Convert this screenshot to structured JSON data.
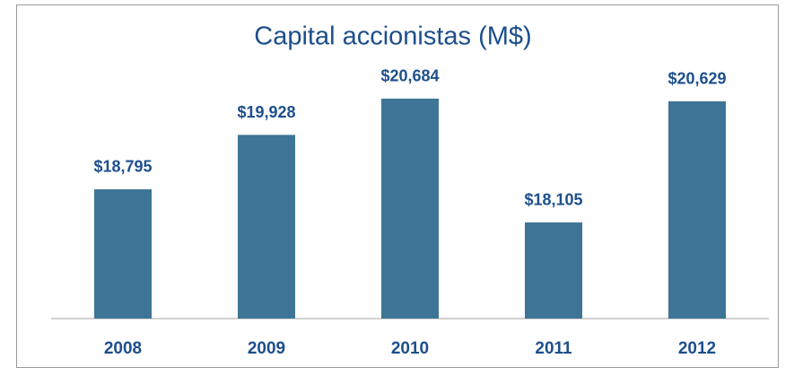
{
  "chart_data": {
    "type": "bar",
    "title": "Capital accionistas (M$)",
    "categories": [
      "2008",
      "2009",
      "2010",
      "2011",
      "2012"
    ],
    "values": [
      18795,
      19928,
      20684,
      18105,
      20629
    ],
    "value_labels": [
      "$18,795",
      "$19,928",
      "$20,684",
      "$18,105",
      "$20,629"
    ],
    "color": "#3e7596",
    "ylim": [
      16100,
      21000
    ]
  }
}
